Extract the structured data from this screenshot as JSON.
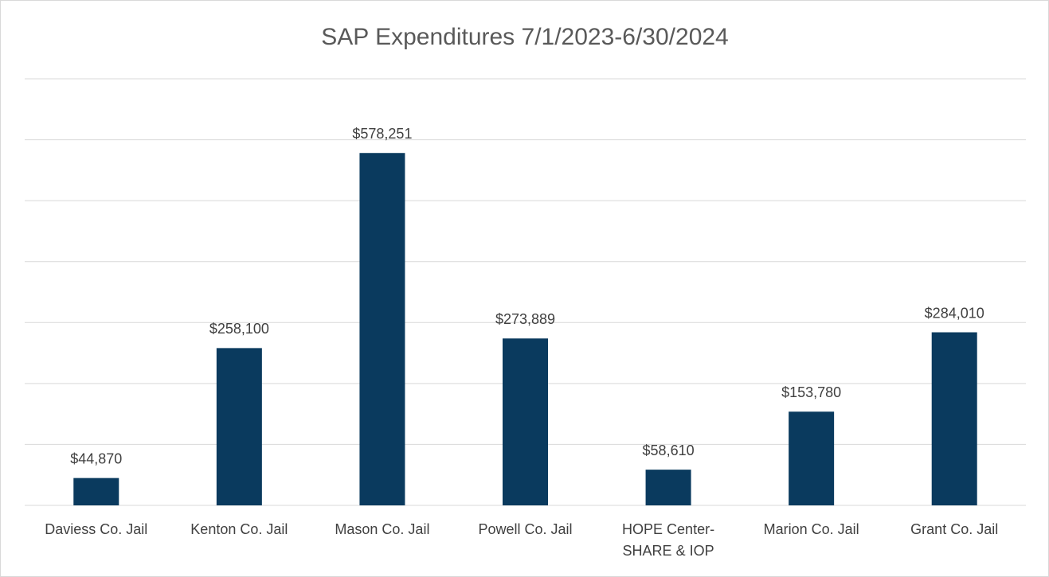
{
  "chart_data": {
    "type": "bar",
    "title": "SAP Expenditures 7/1/2023-6/30/2024",
    "categories": [
      "Daviess Co. Jail",
      "Kenton Co. Jail",
      "Mason Co. Jail",
      "Powell Co. Jail",
      "HOPE Center-SHARE & IOP",
      "Marion Co. Jail",
      "Grant Co. Jail"
    ],
    "values": [
      44870,
      258100,
      578251,
      273889,
      58610,
      153780,
      284010
    ],
    "value_labels": [
      "$44,870",
      "$258,100",
      "$578,251",
      "$273,889",
      "$58,610",
      "$153,780",
      "$284,010"
    ],
    "color": "#0a3a5e",
    "ylim": [
      0,
      700000
    ],
    "yticks": [
      0,
      100000,
      200000,
      300000,
      400000,
      500000,
      600000,
      700000
    ],
    "grid": true
  }
}
